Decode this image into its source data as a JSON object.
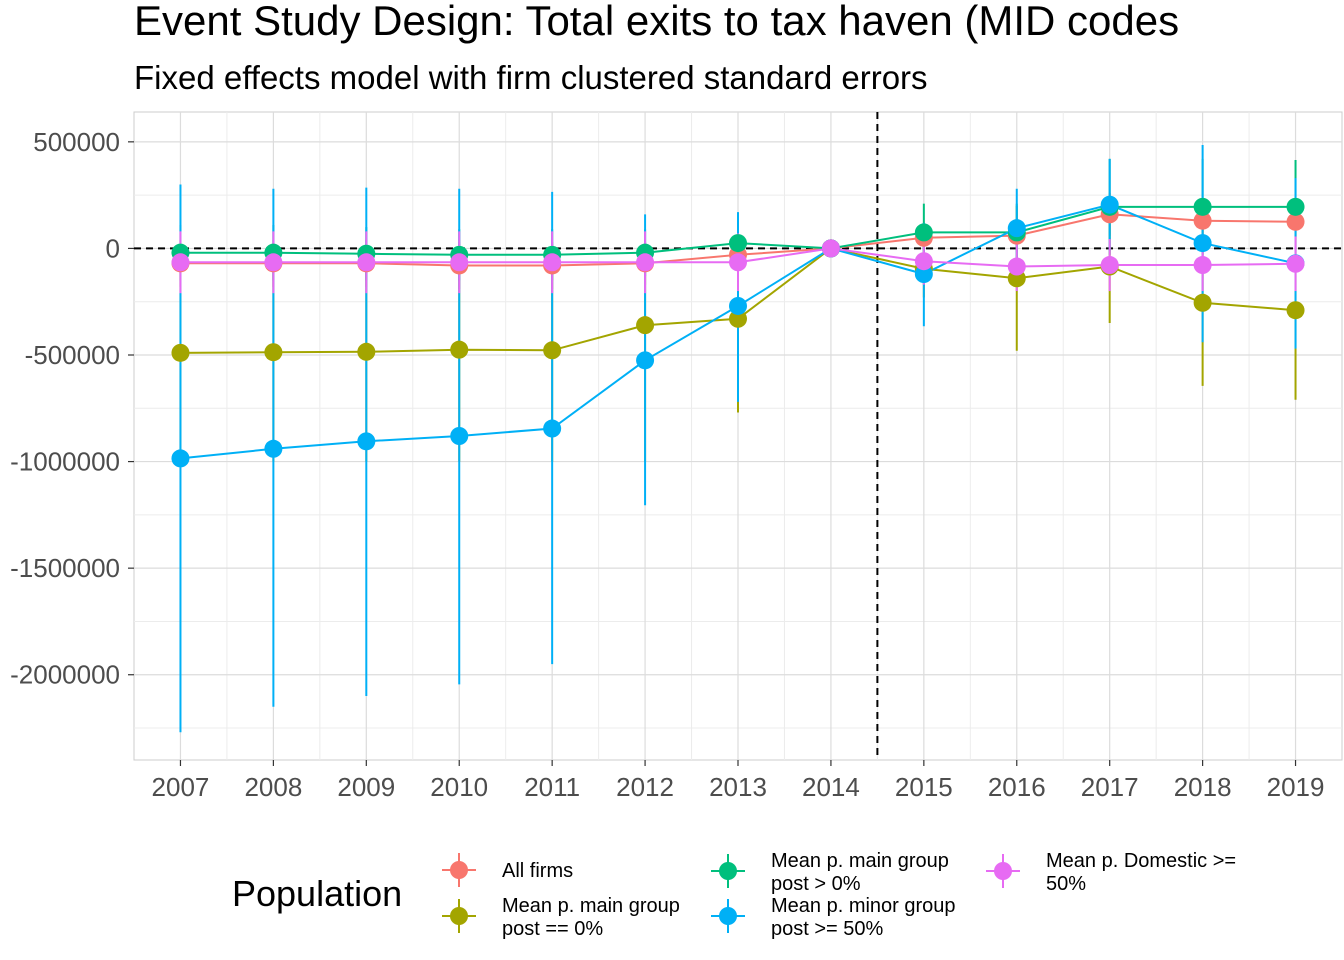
{
  "chart_data": {
    "type": "line",
    "title": "Event Study Design: Total exits to tax haven (MID codes",
    "subtitle": "Fixed effects model with firm clustered standard errors",
    "xlabel": "",
    "ylabel": "",
    "x": [
      2007,
      2008,
      2009,
      2010,
      2011,
      2012,
      2013,
      2014,
      2015,
      2016,
      2017,
      2018,
      2019
    ],
    "xlim": [
      2006.5,
      2019.5
    ],
    "ylim": [
      -2400000,
      640000
    ],
    "y_ticks": [
      500000,
      0,
      -500000,
      -1000000,
      -1500000,
      -2000000
    ],
    "y_tick_labels": [
      "500000",
      "0",
      "-500000",
      "-1000000",
      "-1500000",
      "-2000000"
    ],
    "grid": true,
    "reference_lines": {
      "horizontal_y": 0,
      "vertical_x": 2014.5,
      "style": "dashed"
    },
    "legend": {
      "title": "Population",
      "placement": "bottom",
      "entries": [
        {
          "lines": [
            "All firms"
          ],
          "color": "#F8766D"
        },
        {
          "lines": [
            "Mean p. main group",
            "post == 0%"
          ],
          "color": "#A3A500"
        },
        {
          "lines": [
            "Mean p. main group",
            "post > 0%"
          ],
          "color": "#00BF7D"
        },
        {
          "lines": [
            "Mean p. minor group",
            "post >= 50%"
          ],
          "color": "#00B0F6"
        },
        {
          "lines": [
            "Mean p. Domestic >=",
            "50%"
          ],
          "color": "#E76BF3"
        }
      ]
    },
    "series": [
      {
        "name": "All firms",
        "color": "#F8766D",
        "values": [
          -70000,
          -70000,
          -70000,
          -80000,
          -80000,
          -70000,
          -30000,
          0,
          50000,
          60000,
          160000,
          130000,
          125000
        ],
        "lower": [
          -180000,
          -180000,
          -180000,
          -190000,
          -190000,
          -170000,
          -130000,
          0,
          -20000,
          -20000,
          60000,
          40000,
          40000
        ],
        "upper": [
          40000,
          40000,
          40000,
          30000,
          30000,
          30000,
          70000,
          0,
          120000,
          140000,
          260000,
          220000,
          210000
        ]
      },
      {
        "name": "Mean p. main group post == 0%",
        "color": "#A3A500",
        "values": [
          -490000,
          -487000,
          -485000,
          -475000,
          -478000,
          -360000,
          -330000,
          0,
          -95000,
          -140000,
          -85000,
          -255000,
          -290000
        ],
        "lower": [
          -1000000,
          -1000000,
          -1000000,
          -1000000,
          -1000000,
          -1000000,
          -770000,
          0,
          -230000,
          -480000,
          -350000,
          -645000,
          -710000
        ],
        "upper": [
          20000,
          20000,
          20000,
          20000,
          20000,
          20000,
          110000,
          0,
          40000,
          200000,
          180000,
          135000,
          130000
        ]
      },
      {
        "name": "Mean p. main group post > 0%",
        "color": "#00BF7D",
        "values": [
          -20000,
          -20000,
          -25000,
          -30000,
          -30000,
          -20000,
          25000,
          0,
          75000,
          75000,
          195000,
          195000,
          195000
        ],
        "lower": [
          -150000,
          -150000,
          -150000,
          -150000,
          -150000,
          -130000,
          -100000,
          0,
          -60000,
          -60000,
          -30000,
          -30000,
          -30000
        ],
        "upper": [
          110000,
          110000,
          100000,
          90000,
          90000,
          90000,
          150000,
          0,
          210000,
          210000,
          420000,
          420000,
          415000
        ]
      },
      {
        "name": "Mean p. minor group post >= 50%",
        "color": "#00B0F6",
        "values": [
          -985000,
          -940000,
          -905000,
          -880000,
          -845000,
          -525000,
          -270000,
          0,
          -120000,
          95000,
          205000,
          25000,
          -70000
        ],
        "lower": [
          -2270000,
          -2150000,
          -2100000,
          -2045000,
          -1950000,
          -1205000,
          -720000,
          0,
          -365000,
          -90000,
          -10000,
          -440000,
          -470000
        ],
        "upper": [
          300000,
          280000,
          285000,
          280000,
          265000,
          160000,
          170000,
          0,
          120000,
          280000,
          420000,
          485000,
          330000
        ]
      },
      {
        "name": "Mean p. Domestic >= 50%",
        "color": "#E76BF3",
        "values": [
          -65000,
          -65000,
          -65000,
          -65000,
          -65000,
          -65000,
          -65000,
          0,
          -60000,
          -85000,
          -78000,
          -78000,
          -72000
        ],
        "lower": [
          -210000,
          -210000,
          -210000,
          -210000,
          -210000,
          -210000,
          -200000,
          0,
          -170000,
          -200000,
          -200000,
          -200000,
          -200000
        ],
        "upper": [
          80000,
          80000,
          80000,
          80000,
          80000,
          80000,
          70000,
          0,
          50000,
          30000,
          44000,
          44000,
          56000
        ]
      }
    ]
  }
}
